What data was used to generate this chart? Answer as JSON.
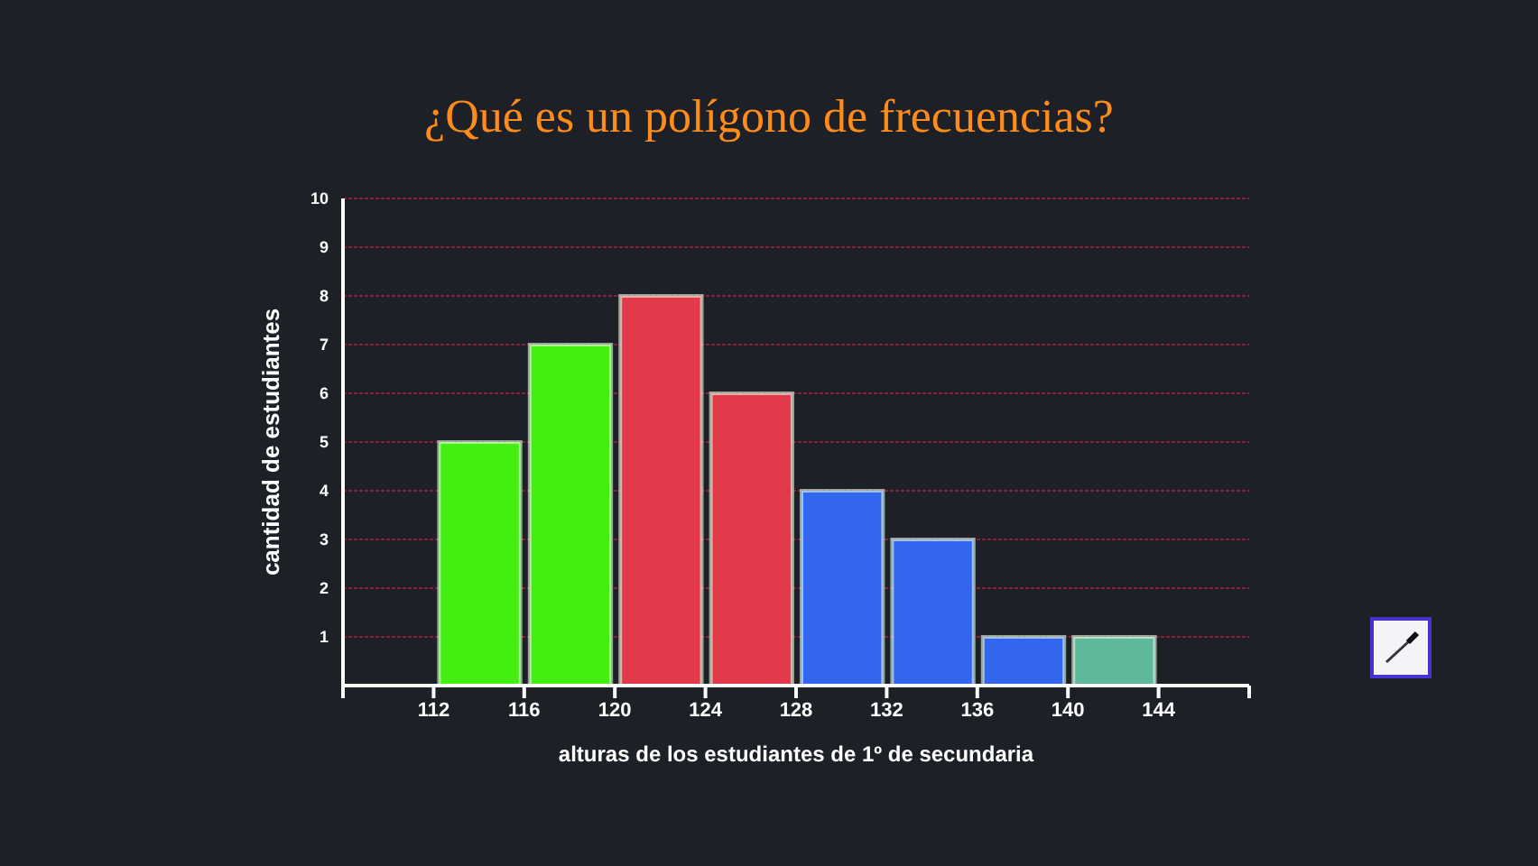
{
  "chart_data": {
    "type": "histogram",
    "title": "¿Qué es un polígono de frecuencias?",
    "xlabel": "alturas de los estudiantes de 1º de secundaria",
    "ylabel": "cantidad de estudiantes",
    "bins": [
      112,
      116,
      120,
      124,
      128,
      132,
      136,
      140,
      144
    ],
    "values": [
      5,
      7,
      8,
      6,
      4,
      3,
      1,
      1
    ],
    "colors": [
      "#44ee11",
      "#44ee11",
      "#e23a4a",
      "#e23a4a",
      "#3366ee",
      "#3366ee",
      "#3366ee",
      "#5fb89a"
    ],
    "xlim": [
      108,
      148
    ],
    "xticks": [
      {
        "value": 108,
        "label": null
      },
      112,
      116,
      120,
      124,
      128,
      132,
      136,
      140,
      144,
      {
        "value": 148,
        "label": null
      }
    ],
    "ylim": [
      0,
      10
    ],
    "yticks": [
      1,
      2,
      3,
      4,
      5,
      6,
      7,
      8,
      9,
      10
    ],
    "grid": "y"
  }
}
